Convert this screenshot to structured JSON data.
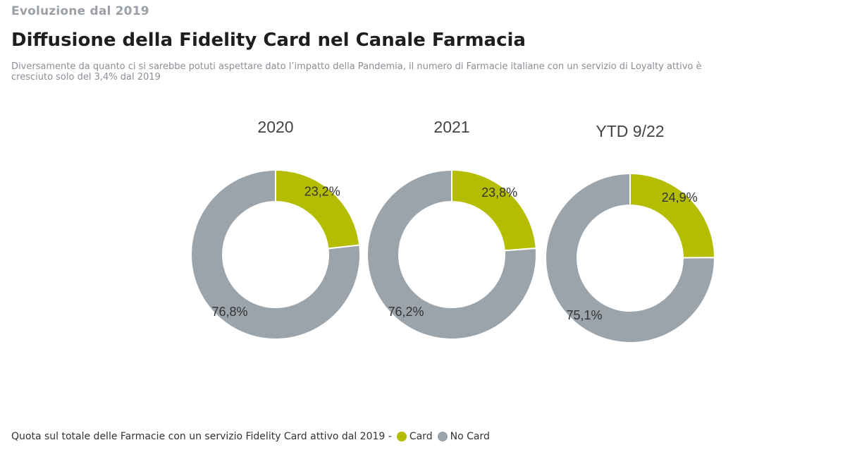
{
  "header": {
    "kicker": "Evoluzione dal 2019",
    "title": "Diffusione della Fidelity Card nel Canale Farmacia",
    "subtitle": "Diversamente da quanto ci si sarebbe potuti aspettare dato l’impatto della Pandemia, il numero di Farmacie italiane con un servizio di Loyalty attivo è cresciuto solo del 3,4% dal 2019"
  },
  "colors": {
    "card": "#b5bd00",
    "no_card": "#9ba3ab"
  },
  "chart_data": [
    {
      "type": "pie",
      "title": "2020",
      "slices": [
        {
          "name": "Card",
          "value": 23.2,
          "label": "23,2%"
        },
        {
          "name": "No Card",
          "value": 76.8,
          "label": "76,8%"
        }
      ]
    },
    {
      "type": "pie",
      "title": "2021",
      "slices": [
        {
          "name": "Card",
          "value": 23.8,
          "label": "23,8%"
        },
        {
          "name": "No Card",
          "value": 76.2,
          "label": "76,2%"
        }
      ]
    },
    {
      "type": "pie",
      "title": "YTD 9/22",
      "slices": [
        {
          "name": "Card",
          "value": 24.9,
          "label": "24,9%"
        },
        {
          "name": "No Card",
          "value": 75.1,
          "label": "75,1%"
        }
      ]
    }
  ],
  "legend": {
    "caption": "Quota sul totale delle Farmacie con un servizio Fidelity Card attivo dal 2019 -",
    "items": [
      "Card",
      "No Card"
    ]
  }
}
